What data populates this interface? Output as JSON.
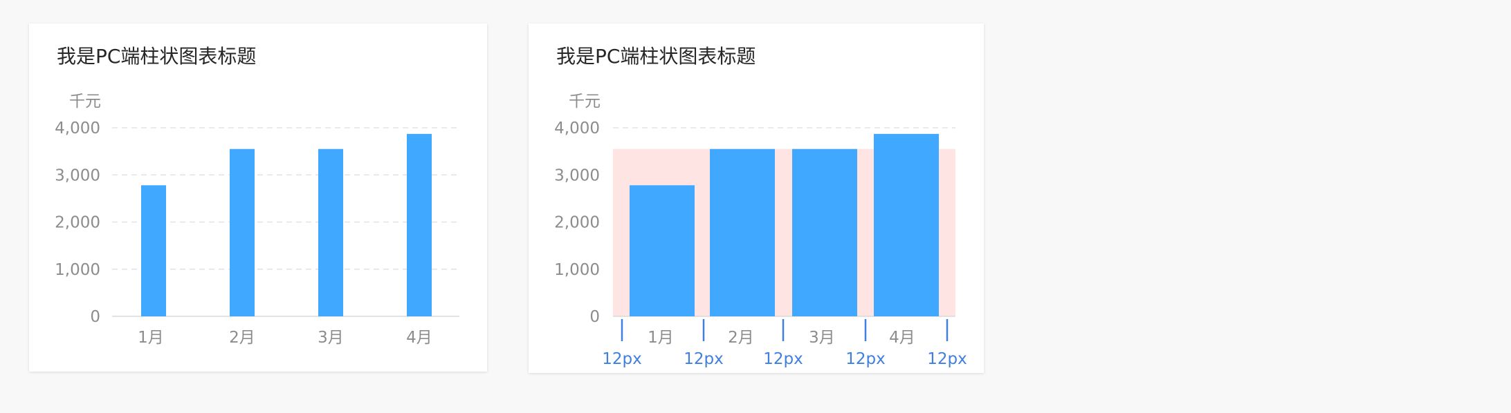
{
  "colors": {
    "bar": "#40a9ff",
    "band": "#ffe4e4",
    "grid": "#dfe3e8",
    "axis": "#d9d9d9",
    "dimension": "#3f7fe0",
    "title": "#262626",
    "label": "#8c8c8c"
  },
  "charts": [
    {
      "title": "我是PC端柱状图表标题",
      "show_bands": false,
      "dimension_labels": []
    },
    {
      "title": "我是PC端柱状图表标题",
      "show_bands": true,
      "dimension_labels": [
        "12px",
        "12px",
        "12px",
        "12px",
        "12px"
      ]
    }
  ],
  "chart_data": [
    {
      "type": "bar",
      "title": "我是PC端柱状图表标题",
      "unit": "千元",
      "categories": [
        "1月",
        "2月",
        "3月",
        "4月"
      ],
      "values": [
        2780,
        3550,
        3550,
        3870
      ],
      "ylim": [
        0,
        4000
      ],
      "yticks": [
        0,
        1000,
        2000,
        3000,
        4000
      ],
      "ytick_labels": [
        "0",
        "1,000",
        "2,000",
        "3,000",
        "4,000"
      ],
      "grid": true,
      "band_value": 3550
    },
    {
      "type": "bar",
      "title": "我是PC端柱状图表标题",
      "unit": "千元",
      "categories": [
        "1月",
        "2月",
        "3月",
        "4月"
      ],
      "values": [
        2780,
        3550,
        3550,
        3870
      ],
      "ylim": [
        0,
        4000
      ],
      "yticks": [
        0,
        1000,
        2000,
        3000,
        4000
      ],
      "ytick_labels": [
        "0",
        "1,000",
        "2,000",
        "3,000",
        "4,000"
      ],
      "grid": true,
      "band_value": 3550
    }
  ]
}
